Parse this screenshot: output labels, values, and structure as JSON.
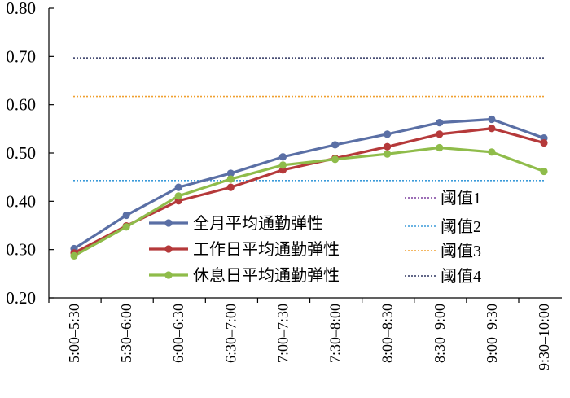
{
  "chart_data": {
    "type": "line",
    "title": "",
    "xlabel": "",
    "ylabel": "",
    "categories": [
      "5:00–5:30",
      "5:30–6:00",
      "6:00–6:30",
      "6:30–7:00",
      "7:00–7:30",
      "7:30–8:00",
      "8:00–8:30",
      "8:30–9:00",
      "9:00–9:30",
      "9:30–10:00"
    ],
    "ylim": [
      0.2,
      0.8
    ],
    "yticks": [
      "0.20",
      "0.30",
      "0.40",
      "0.50",
      "0.60",
      "0.70",
      "0.80"
    ],
    "grid": false,
    "series": [
      {
        "name": "全月平均通勤弹性",
        "color": "#5a6fa5",
        "values": [
          0.302,
          0.371,
          0.429,
          0.458,
          0.492,
          0.517,
          0.539,
          0.563,
          0.57,
          0.531
        ]
      },
      {
        "name": "工作日平均通勤弹性",
        "color": "#b5393a",
        "values": [
          0.293,
          0.349,
          0.401,
          0.429,
          0.465,
          0.489,
          0.513,
          0.539,
          0.551,
          0.521
        ]
      },
      {
        "name": "休息日平均通勤弹性",
        "color": "#8fbc4a",
        "values": [
          0.287,
          0.347,
          0.411,
          0.446,
          0.475,
          0.487,
          0.498,
          0.511,
          0.502,
          0.462
        ]
      }
    ],
    "thresholds": [
      {
        "name": "阈值1",
        "color": "#7b3f9e",
        "value": null
      },
      {
        "name": "阈值2",
        "color": "#3a9ad9",
        "value": 0.443
      },
      {
        "name": "阈值3",
        "color": "#f0a030",
        "value": 0.617
      },
      {
        "name": "阈值4",
        "color": "#2e3560",
        "value": 0.697
      }
    ],
    "legend_position": "bottom-center"
  }
}
